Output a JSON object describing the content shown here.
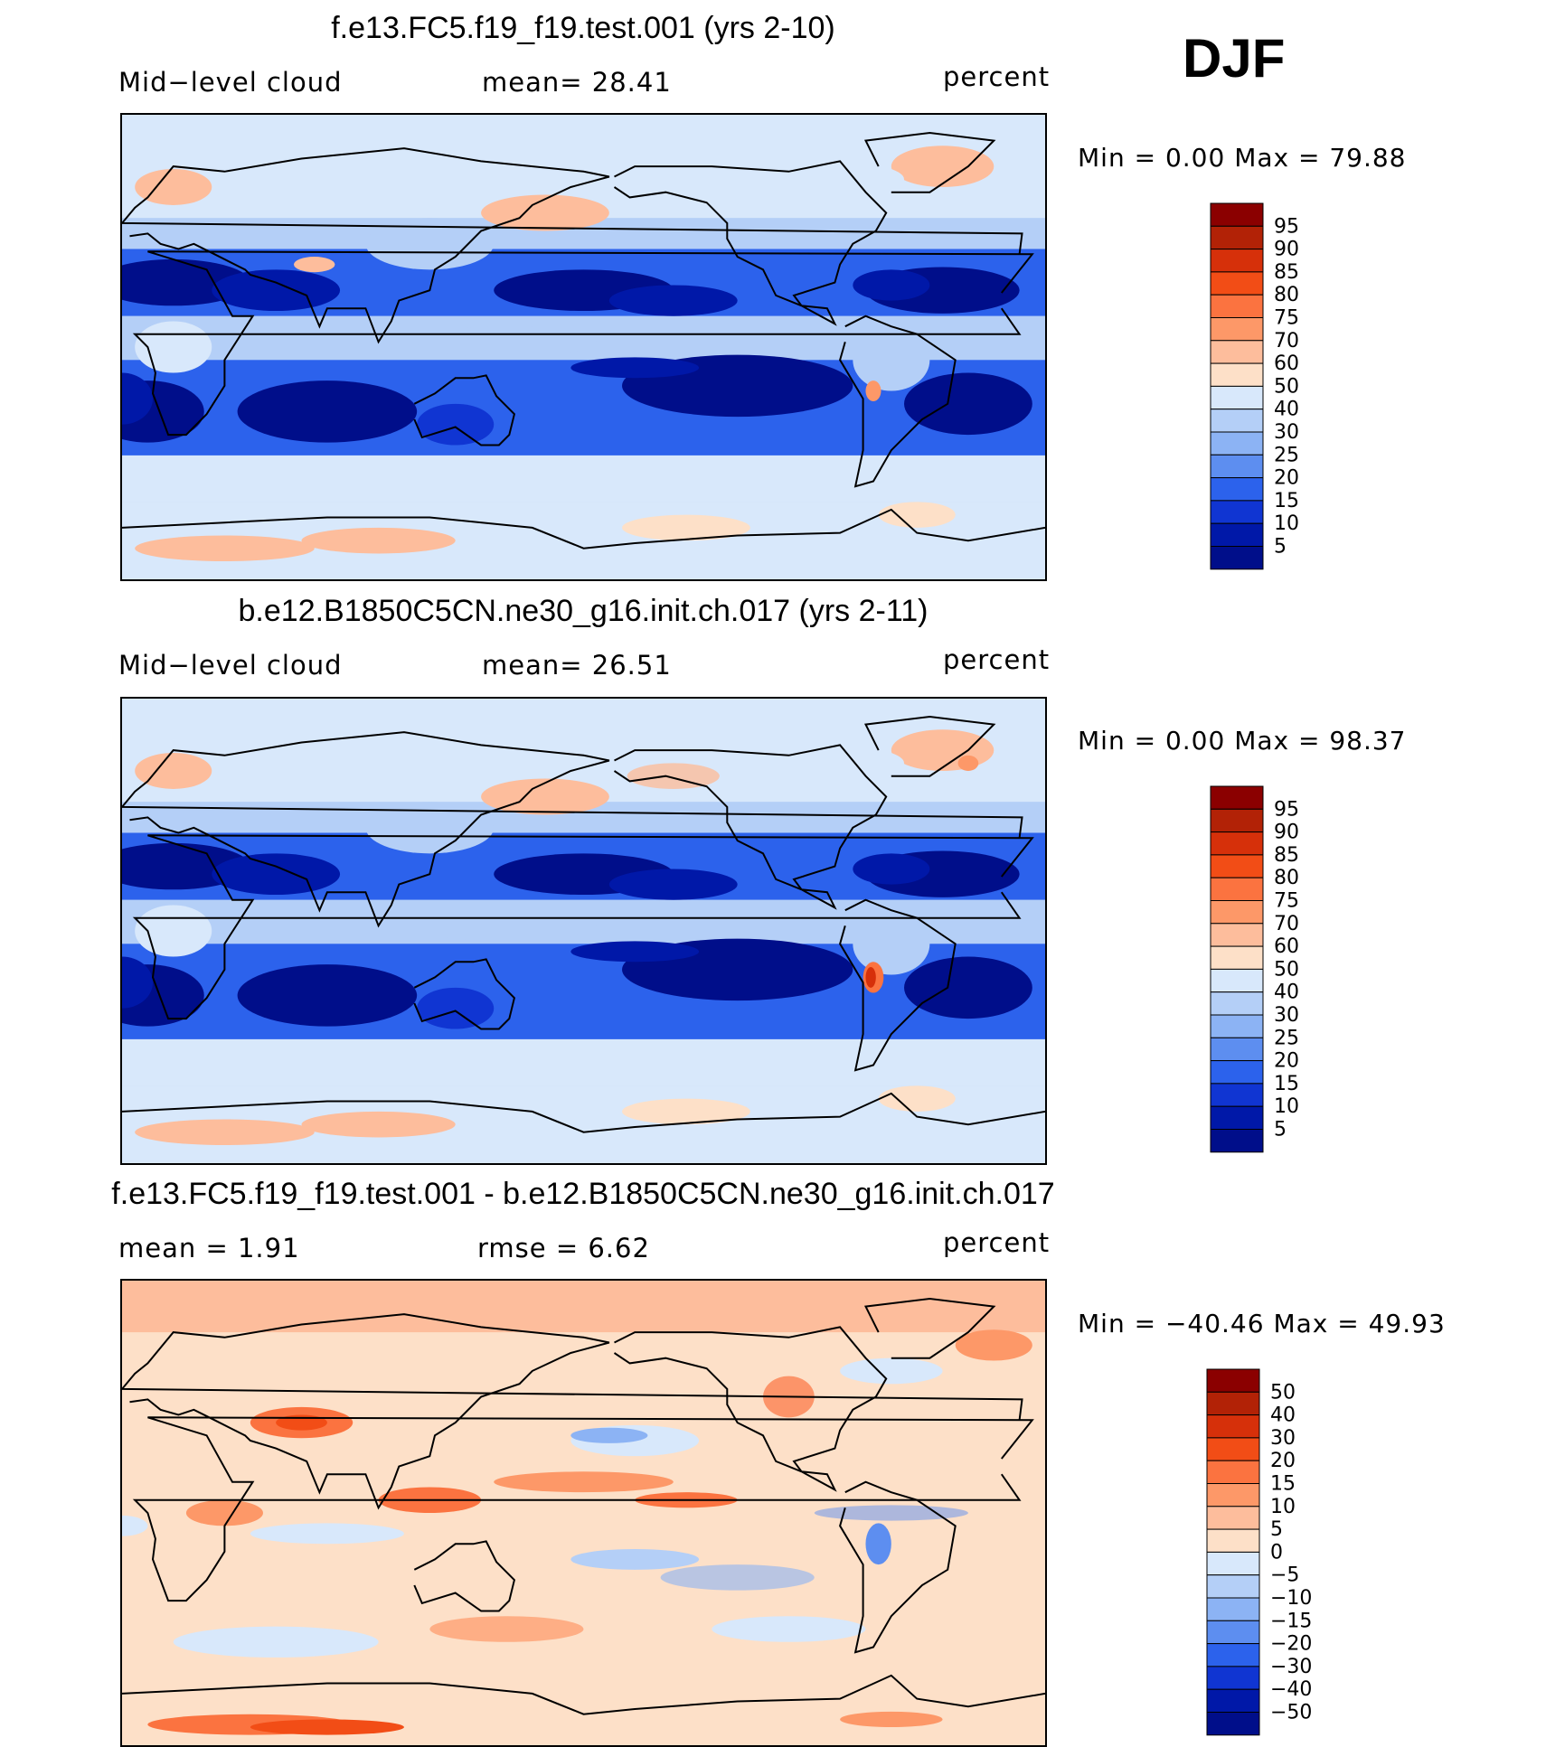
{
  "season": "DJF",
  "units": "percent",
  "panels": [
    {
      "title": "f.e13.FC5.f19_f19.test.001 (yrs 2-10)",
      "left_label": "Mid−level cloud",
      "mid_label": "mean=   28.41",
      "right_label": "percent",
      "minmax": "Min =    0.00 Max =   79.88",
      "field": "model"
    },
    {
      "title": "b.e12.B1850C5CN.ne30_g16.init.ch.017 (yrs 2-11)",
      "left_label": "Mid−level cloud",
      "mid_label": "mean=   26.51",
      "right_label": "percent",
      "minmax": "Min =    0.00 Max =   98.37",
      "field": "control"
    },
    {
      "title": "f.e13.FC5.f19_f19.test.001 - b.e12.B1850C5CN.ne30_g16.init.ch.017",
      "left_label": "mean =    1.91",
      "mid_label": "rmse =    6.62",
      "right_label": "percent",
      "minmax": "Min = −40.46 Max =   49.93",
      "field": "difference"
    }
  ],
  "chart_data": [
    {
      "type": "heatmap",
      "title": "f.e13.FC5.f19_f19.test.001 (yrs 2-10)",
      "variable": "Mid-level cloud",
      "units": "percent",
      "mean": 28.41,
      "min": 0.0,
      "max": 79.88,
      "colorbar_levels": [
        95,
        90,
        85,
        80,
        75,
        70,
        60,
        50,
        40,
        30,
        25,
        20,
        15,
        10,
        5
      ],
      "colorbar_colors": [
        "#8b0000",
        "#b22206",
        "#d6300a",
        "#f24d16",
        "#fb7340",
        "#fd9868",
        "#fdbd9c",
        "#fde0c8",
        "#d8e8fb",
        "#b4cff7",
        "#8cb3f4",
        "#5d8ef0",
        "#2c62ec",
        "#1035d2",
        "#0018a8",
        "#000e8a"
      ]
    },
    {
      "type": "heatmap",
      "title": "b.e12.B1850C5CN.ne30_g16.init.ch.017 (yrs 2-11)",
      "variable": "Mid-level cloud",
      "units": "percent",
      "mean": 26.51,
      "min": 0.0,
      "max": 98.37,
      "colorbar_levels": [
        95,
        90,
        85,
        80,
        75,
        70,
        60,
        50,
        40,
        30,
        25,
        20,
        15,
        10,
        5
      ],
      "colorbar_colors": [
        "#8b0000",
        "#b22206",
        "#d6300a",
        "#f24d16",
        "#fb7340",
        "#fd9868",
        "#fdbd9c",
        "#fde0c8",
        "#d8e8fb",
        "#b4cff7",
        "#8cb3f4",
        "#5d8ef0",
        "#2c62ec",
        "#1035d2",
        "#0018a8",
        "#000e8a"
      ]
    },
    {
      "type": "heatmap",
      "title": "f.e13.FC5.f19_f19.test.001 - b.e12.B1850C5CN.ne30_g16.init.ch.017",
      "units": "percent",
      "mean": 1.91,
      "rmse": 6.62,
      "min": -40.46,
      "max": 49.93,
      "colorbar_levels": [
        "50",
        "40",
        "30",
        "20",
        "15",
        "10",
        "5",
        "0",
        "−5",
        "−10",
        "−15",
        "−20",
        "−30",
        "−40",
        "−50"
      ],
      "colorbar_colors": [
        "#8b0000",
        "#b22206",
        "#d6300a",
        "#f24d16",
        "#fb7340",
        "#fd9868",
        "#fdbd9c",
        "#fde0c8",
        "#d8e8fb",
        "#b4cff7",
        "#8cb3f4",
        "#5d8ef0",
        "#2c62ec",
        "#1035d2",
        "#0018a8",
        "#000e8a"
      ]
    }
  ]
}
